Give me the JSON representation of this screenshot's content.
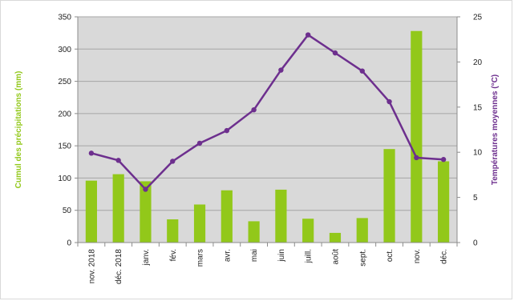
{
  "chart_data": {
    "type": "bar-line-combo",
    "title": "",
    "xlabel": "",
    "categories": [
      "nov. 2018",
      "déc. 2018",
      "janv.",
      "fév.",
      "mars",
      "avr.",
      "mai",
      "juin",
      "juill.",
      "août",
      "sept.",
      "oct.",
      "nov.",
      "déc."
    ],
    "series": [
      {
        "name": "Cumul des précipitations (mm)",
        "type": "bar",
        "axis": "left",
        "color": "#92c81a",
        "values": [
          96,
          106,
          95,
          36,
          59,
          81,
          33,
          82,
          37,
          15,
          38,
          145,
          328,
          126
        ]
      },
      {
        "name": "Températures moyennes (°C)",
        "type": "line",
        "axis": "right",
        "color": "#6d2f8e",
        "values": [
          9.9,
          9.1,
          5.9,
          9.0,
          11.0,
          12.4,
          14.7,
          19.1,
          23.0,
          21.0,
          19.0,
          15.6,
          9.4,
          9.2
        ]
      }
    ],
    "y_left": {
      "label": "Cumul des précipitations (mm)",
      "label_color": "#92c81a",
      "range": [
        0,
        350
      ],
      "ticks": [
        "0",
        "50",
        "100",
        "150",
        "200",
        "250",
        "300",
        "350"
      ]
    },
    "y_right": {
      "label": "Températures moyennes (°C)",
      "label_color": "#6d2f8e",
      "range": [
        0,
        25
      ],
      "ticks": [
        "0",
        "5",
        "10",
        "15",
        "20",
        "25"
      ]
    },
    "grid": true,
    "legend": "none",
    "plot_background": "#d9d9d9"
  }
}
